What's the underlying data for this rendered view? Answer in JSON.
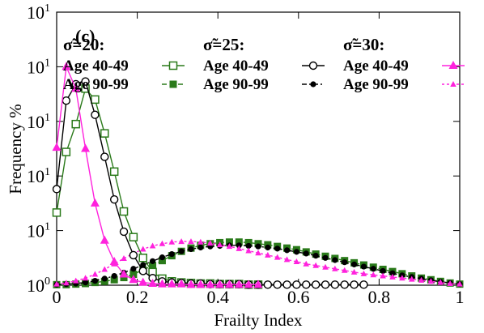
{
  "chart_data": {
    "type": "line",
    "panel_label": "(c)",
    "xlabel": "Frailty Index",
    "ylabel": "Frequency %",
    "xlim": [
      0,
      1
    ],
    "ylim": [
      0,
      5
    ],
    "grid": false,
    "legend_placement": "top",
    "x_ticks": [
      {
        "value": 0,
        "label": "0"
      },
      {
        "value": 0.2,
        "label": "0.2"
      },
      {
        "value": 0.4,
        "label": "0.4"
      },
      {
        "value": 0.6,
        "label": "0.6"
      },
      {
        "value": 0.8,
        "label": "0.8"
      },
      {
        "value": 1,
        "label": "1"
      }
    ],
    "y_ticks": [
      {
        "value": 0,
        "base": "10",
        "exp": "0"
      },
      {
        "value": 1,
        "base": "10",
        "exp": "1"
      },
      {
        "value": 2,
        "base": "10",
        "exp": "1"
      },
      {
        "value": 3,
        "base": "10",
        "exp": "1"
      },
      {
        "value": 4,
        "base": "10",
        "exp": "1"
      },
      {
        "value": 5,
        "base": "10",
        "exp": "1"
      }
    ],
    "legend_groups": [
      {
        "header": "σ̃=20:",
        "labels": [
          "Age 40-49",
          "Age 90-99"
        ]
      },
      {
        "header": "σ̃=25:",
        "labels": [
          "Age 40-49",
          "Age 90-99"
        ]
      },
      {
        "header": "σ̃=30:",
        "labels": [
          "Age 40-49",
          "Age 90-99"
        ]
      }
    ],
    "series": [
      {
        "group": 0,
        "entry": 0,
        "color": "#2a7a1a",
        "marker": "open-square",
        "dash": "none",
        "x": [
          0,
          0.0238,
          0.0476,
          0.0714,
          0.0952,
          0.119,
          0.1429,
          0.1667,
          0.1905,
          0.2143,
          0.2381,
          0.2619,
          0.2857,
          0.3095,
          0.3333,
          0.3571,
          0.381,
          0.4048,
          0.4286,
          0.4524,
          0.4762,
          0.5
        ],
        "y": [
          1.33,
          2.44,
          2.95,
          3.6,
          3.4,
          2.78,
          2.08,
          1.35,
          0.88,
          0.5,
          0.24,
          0.12,
          0.07,
          0.05,
          0.04,
          0.03,
          0.03,
          0.02,
          0.02,
          0.02,
          0.01,
          0.01
        ]
      },
      {
        "group": 0,
        "entry": 1,
        "color": "#2a7a1a",
        "marker": "filled-square",
        "dash": "6,4",
        "x": [
          0,
          0.0238,
          0.0476,
          0.0714,
          0.0952,
          0.119,
          0.1429,
          0.1667,
          0.1905,
          0.2143,
          0.2381,
          0.2619,
          0.2857,
          0.3095,
          0.3333,
          0.3571,
          0.381,
          0.4048,
          0.4286,
          0.4524,
          0.4762,
          0.5,
          0.5238,
          0.5476,
          0.5714,
          0.5952,
          0.619,
          0.6429,
          0.6667,
          0.6905,
          0.7143,
          0.7381,
          0.7619,
          0.7857,
          0.8095,
          0.8333,
          0.8571,
          0.881,
          0.9048,
          0.9286,
          0.9524,
          0.9762,
          1.0
        ],
        "y": [
          0.01,
          0.01,
          0.02,
          0.03,
          0.05,
          0.07,
          0.1,
          0.14,
          0.2,
          0.28,
          0.36,
          0.45,
          0.54,
          0.62,
          0.68,
          0.73,
          0.76,
          0.78,
          0.79,
          0.79,
          0.78,
          0.76,
          0.74,
          0.71,
          0.68,
          0.65,
          0.61,
          0.57,
          0.53,
          0.49,
          0.45,
          0.41,
          0.37,
          0.33,
          0.29,
          0.25,
          0.21,
          0.17,
          0.13,
          0.1,
          0.07,
          0.04,
          0.02
        ]
      },
      {
        "group": 1,
        "entry": 0,
        "color": "#000000",
        "marker": "open-circle",
        "dash": "none",
        "x": [
          0,
          0.0238,
          0.0476,
          0.0714,
          0.0952,
          0.119,
          0.1429,
          0.1667,
          0.1905,
          0.2143,
          0.2381,
          0.2619,
          0.2857,
          0.3095,
          0.3333,
          0.3571,
          0.381,
          0.4048,
          0.4286,
          0.4524,
          0.4762,
          0.5,
          0.5238,
          0.5476,
          0.5714,
          0.5952,
          0.619,
          0.6429,
          0.6667,
          0.6905,
          0.7143,
          0.7381,
          0.7619
        ],
        "y": [
          1.76,
          3.38,
          3.68,
          3.73,
          3.12,
          2.35,
          1.57,
          0.98,
          0.55,
          0.26,
          0.13,
          0.07,
          0.05,
          0.04,
          0.03,
          0.03,
          0.02,
          0.02,
          0.02,
          0.02,
          0.01,
          0.01,
          0.01,
          0.01,
          0.01,
          0.01,
          0.01,
          0.01,
          0.01,
          0.01,
          0.01,
          0.01,
          0.01
        ]
      },
      {
        "group": 1,
        "entry": 1,
        "color": "#000000",
        "marker": "filled-circle",
        "dash": "6,3,2,3",
        "x": [
          0,
          0.0238,
          0.0476,
          0.0714,
          0.0952,
          0.119,
          0.1429,
          0.1667,
          0.1905,
          0.2143,
          0.2381,
          0.2619,
          0.2857,
          0.3095,
          0.3333,
          0.3571,
          0.381,
          0.4048,
          0.4286,
          0.4524,
          0.4762,
          0.5,
          0.5238,
          0.5476,
          0.5714,
          0.5952,
          0.619,
          0.6429,
          0.6667,
          0.6905,
          0.7143,
          0.7381,
          0.7619,
          0.7857,
          0.8095,
          0.8333,
          0.8571,
          0.881,
          0.9048,
          0.9286,
          0.9524,
          0.9762,
          1.0
        ],
        "y": [
          0.01,
          0.02,
          0.03,
          0.05,
          0.08,
          0.12,
          0.17,
          0.23,
          0.3,
          0.37,
          0.44,
          0.51,
          0.57,
          0.62,
          0.66,
          0.69,
          0.71,
          0.72,
          0.73,
          0.73,
          0.72,
          0.71,
          0.69,
          0.67,
          0.64,
          0.61,
          0.58,
          0.54,
          0.5,
          0.46,
          0.42,
          0.38,
          0.34,
          0.3,
          0.26,
          0.22,
          0.18,
          0.15,
          0.12,
          0.09,
          0.06,
          0.04,
          0.02
        ]
      },
      {
        "group": 2,
        "entry": 0,
        "color": "#ff22dd",
        "marker": "filled-triangle",
        "dash": "none",
        "x": [
          0,
          0.0238,
          0.0476,
          0.0714,
          0.0952,
          0.119,
          0.1429,
          0.1667,
          0.1905,
          0.2143,
          0.2381,
          0.2619,
          0.2857,
          0.3095,
          0.3333,
          0.3571,
          0.381,
          0.4048,
          0.4286,
          0.4524,
          0.4762,
          0.5
        ],
        "y": [
          2.52,
          4.0,
          3.6,
          2.5,
          1.5,
          0.82,
          0.43,
          0.2,
          0.1,
          0.05,
          0.03,
          0.02,
          0.02,
          0.02,
          0.01,
          0.01,
          0.01,
          0.01,
          0.01,
          0.01,
          0.01,
          0.01
        ]
      },
      {
        "group": 2,
        "entry": 1,
        "color": "#ff22dd",
        "marker": "small-filled-triangle",
        "dash": "3,3",
        "x": [
          0,
          0.0238,
          0.0476,
          0.0714,
          0.0952,
          0.119,
          0.1429,
          0.1667,
          0.1905,
          0.2143,
          0.2381,
          0.2619,
          0.2857,
          0.3095,
          0.3333,
          0.3571,
          0.381,
          0.4048,
          0.4286,
          0.4524,
          0.4762,
          0.5,
          0.5238,
          0.5476,
          0.5714,
          0.5952,
          0.619,
          0.6429,
          0.6667,
          0.6905,
          0.7143,
          0.7381,
          0.7619,
          0.7857,
          0.8095,
          0.8333,
          0.8571,
          0.881,
          0.9048,
          0.9286,
          0.9524,
          0.9762,
          1.0
        ],
        "y": [
          0.02,
          0.04,
          0.08,
          0.13,
          0.2,
          0.29,
          0.39,
          0.49,
          0.58,
          0.66,
          0.72,
          0.76,
          0.79,
          0.8,
          0.8,
          0.79,
          0.77,
          0.74,
          0.71,
          0.67,
          0.63,
          0.59,
          0.55,
          0.51,
          0.47,
          0.43,
          0.39,
          0.36,
          0.33,
          0.3,
          0.27,
          0.24,
          0.21,
          0.19,
          0.17,
          0.15,
          0.13,
          0.11,
          0.09,
          0.07,
          0.05,
          0.03,
          0.02
        ]
      }
    ]
  }
}
